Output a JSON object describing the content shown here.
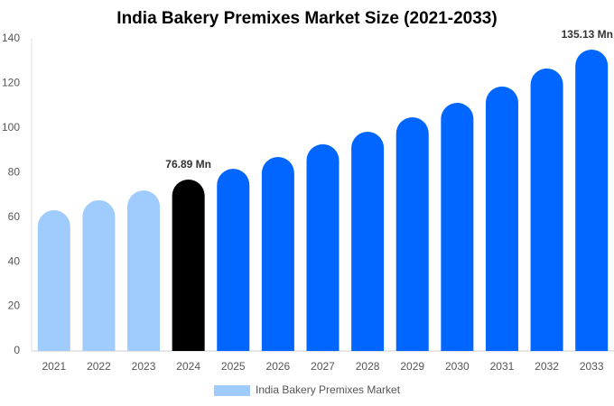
{
  "chart_data": {
    "type": "bar",
    "title": "India Bakery Premixes Market Size (2021-2033)",
    "categories": [
      "2021",
      "2022",
      "2023",
      "2024",
      "2025",
      "2026",
      "2027",
      "2028",
      "2029",
      "2030",
      "2031",
      "2032",
      "2033"
    ],
    "series": [
      {
        "name": "India Bakery Premixes Market",
        "color": "#a0cbfd",
        "values": [
          63.1,
          67.6,
          72,
          76.89,
          81.7,
          87,
          92.7,
          98.3,
          104.8,
          111.3,
          118.6,
          126.7,
          135.13
        ],
        "value_labels": [
          null,
          null,
          null,
          "76.89 Mn",
          null,
          null,
          null,
          null,
          null,
          null,
          null,
          null,
          "135.13 Mn"
        ],
        "colors": [
          "#a0cbfd",
          "#a0cbfd",
          "#a0cbfd",
          "#000000",
          "#0066ff",
          "#0066ff",
          "#0066ff",
          "#0066ff",
          "#0066ff",
          "#0066ff",
          "#0066ff",
          "#0066ff",
          "#0066ff"
        ]
      }
    ],
    "ylim": [
      0,
      140
    ],
    "yticks": [
      0,
      20,
      40,
      60,
      80,
      100,
      120,
      140
    ],
    "grid": false
  }
}
